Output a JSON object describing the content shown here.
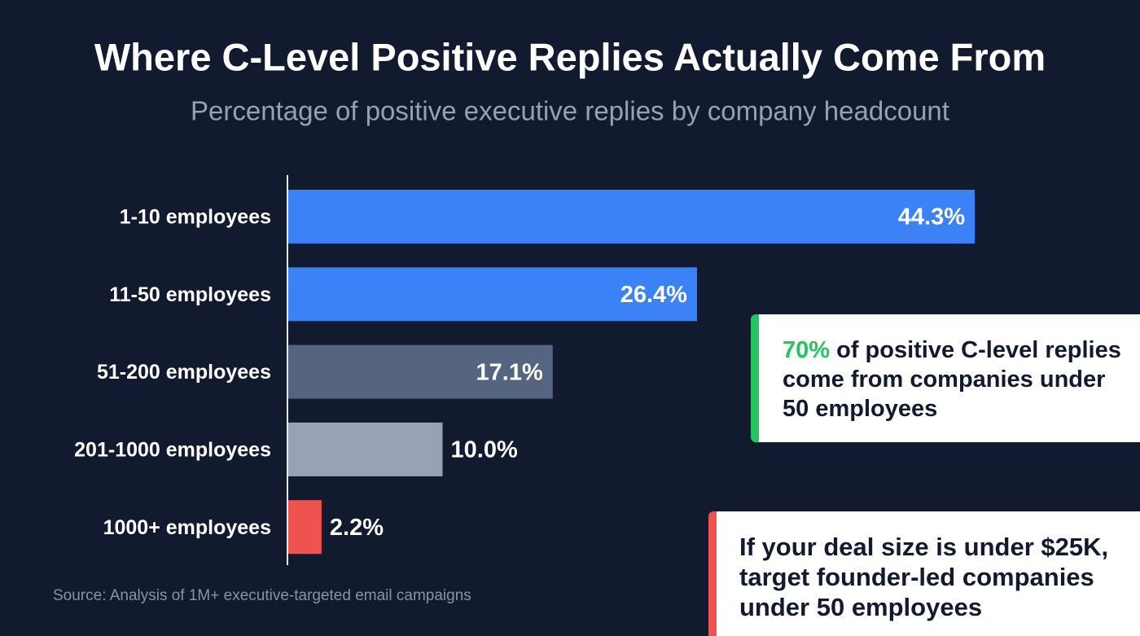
{
  "chart_data": {
    "type": "bar",
    "orientation": "horizontal",
    "title": "Where C-Level Positive Replies Actually Come From",
    "subtitle": "Percentage of positive executive replies by company headcount",
    "categories": [
      "1-10 employees",
      "11-50 employees",
      "51-200 employees",
      "201-1000 employees",
      "1000+ employees"
    ],
    "values": [
      44.3,
      26.4,
      17.1,
      10.0,
      2.2
    ],
    "value_labels": [
      "44.3%",
      "26.4%",
      "17.1%",
      "10.0%",
      "2.2%"
    ],
    "colors": [
      "#3b82f6",
      "#3b82f6",
      "#56657f",
      "#97a2b5",
      "#ef5350"
    ],
    "source": "Source: Analysis of 1M+ executive-targeted email campaigns",
    "annotations": [
      {
        "highlight": "70%",
        "text": "of positive C-level replies come from companies under 50 employees",
        "accent": "#22c55e"
      },
      {
        "text": "If your deal size is under $25K, target founder-led companies under 50 employees",
        "accent": "#ef5350"
      }
    ]
  }
}
